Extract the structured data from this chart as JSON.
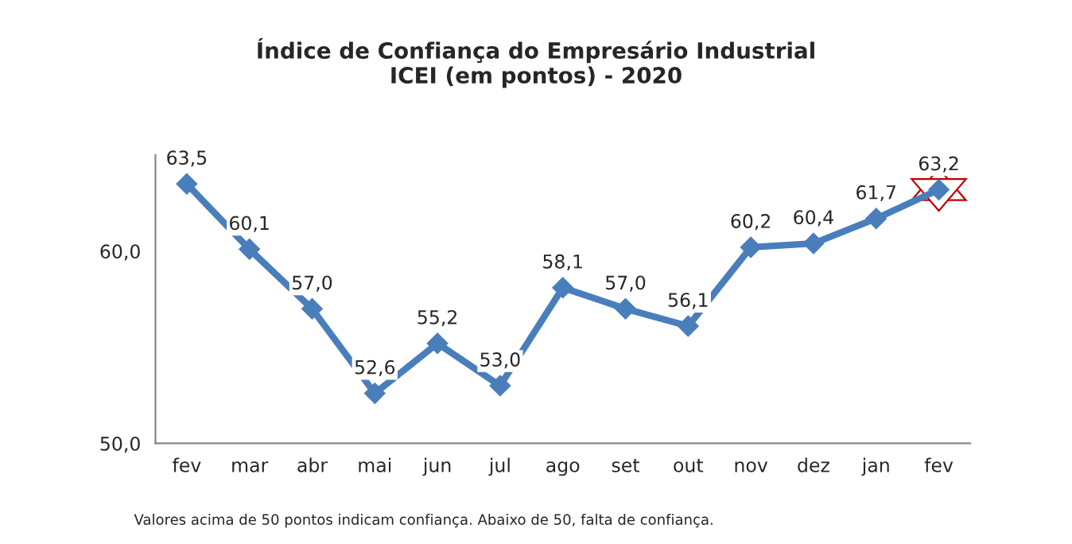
{
  "chart_data": {
    "type": "line",
    "title": "Índice de Confiança do Empresário Industrial\nICEI (em pontos) - 2020",
    "categories": [
      "fev",
      "mar",
      "abr",
      "mai",
      "jun",
      "jul",
      "ago",
      "set",
      "out",
      "nov",
      "dez",
      "jan",
      "fev"
    ],
    "series": [
      {
        "color": "#4a7ebb",
        "values": [
          63.5,
          60.1,
          57.0,
          52.6,
          55.2,
          53.0,
          58.1,
          57.0,
          56.1,
          60.2,
          60.4,
          61.7,
          63.2
        ],
        "value_labels": [
          "63,5",
          "60,1",
          "57,0",
          "52,6",
          "55,2",
          "53,0",
          "58,1",
          "57,0",
          "56,1",
          "60,2",
          "60,4",
          "61,7",
          "63,2"
        ]
      }
    ],
    "ylim": [
      50,
      65
    ],
    "yticks": [
      {
        "value": 50,
        "label": "50,0"
      },
      {
        "value": 60,
        "label": "60,0"
      }
    ],
    "marker": "diamond",
    "line_style": "solid",
    "grid": false,
    "legend": false,
    "annotations": [
      "Valores acima de 50 pontos indicam confiança. Abaixo de 50, falta de confiança."
    ]
  }
}
